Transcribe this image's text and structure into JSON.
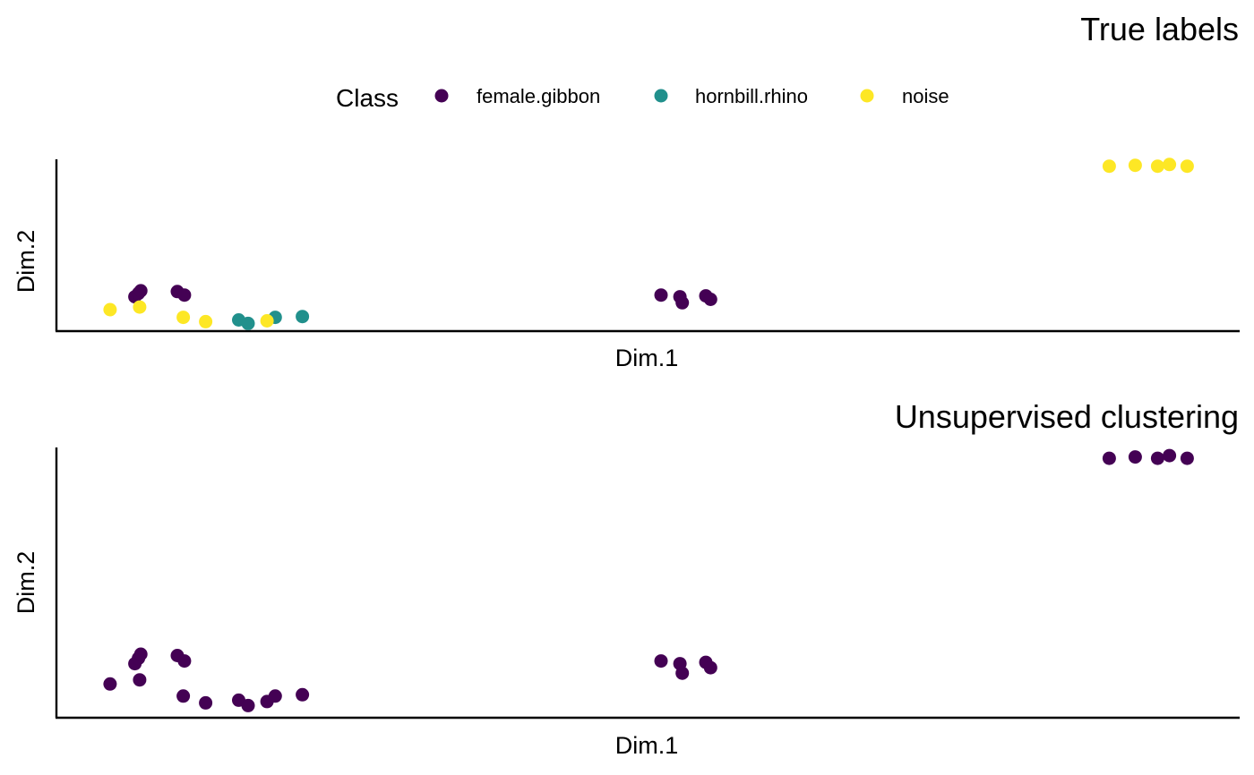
{
  "legend": {
    "title": "Class",
    "items": [
      {
        "label": "female.gibbon",
        "color": "#440154"
      },
      {
        "label": "hornbill.rhino",
        "color": "#21908C"
      },
      {
        "label": "noise",
        "color": "#FDE725"
      }
    ]
  },
  "chart_data": [
    {
      "type": "scatter",
      "title": "True labels",
      "xlabel": "Dim.1",
      "ylabel": "Dim.2",
      "xlim": [
        0,
        1
      ],
      "ylim": [
        0,
        1
      ],
      "grid": false,
      "legend_position": "top",
      "series": [
        {
          "name": "female.gibbon",
          "color": "#440154",
          "x": [
            0.065,
            0.068,
            0.07,
            0.101,
            0.107,
            0.511,
            0.527,
            0.529,
            0.549,
            0.553
          ],
          "y": [
            0.2,
            0.22,
            0.235,
            0.23,
            0.21,
            0.21,
            0.2,
            0.165,
            0.205,
            0.185
          ]
        },
        {
          "name": "hornbill.rhino",
          "color": "#21908C",
          "x": [
            0.153,
            0.161,
            0.184,
            0.207
          ],
          "y": [
            0.065,
            0.045,
            0.08,
            0.085
          ]
        },
        {
          "name": "noise",
          "color": "#FDE725",
          "x": [
            0.044,
            0.069,
            0.106,
            0.125,
            0.177,
            0.891,
            0.913,
            0.932,
            0.942,
            0.957
          ],
          "y": [
            0.125,
            0.14,
            0.08,
            0.055,
            0.06,
            0.96,
            0.965,
            0.96,
            0.97,
            0.96
          ]
        }
      ]
    },
    {
      "type": "scatter",
      "title": "Unsupervised clustering",
      "xlabel": "Dim.1",
      "ylabel": "Dim.2",
      "xlim": [
        0,
        1
      ],
      "ylim": [
        0,
        1
      ],
      "grid": false,
      "series": [
        {
          "name": "female.gibbon",
          "color": "#440154",
          "x": [
            0.044,
            0.065,
            0.068,
            0.069,
            0.07,
            0.101,
            0.106,
            0.107,
            0.125,
            0.153,
            0.161,
            0.177,
            0.184,
            0.207,
            0.511,
            0.527,
            0.529,
            0.549,
            0.553,
            0.891,
            0.913,
            0.932,
            0.942,
            0.957
          ],
          "y": [
            0.125,
            0.2,
            0.22,
            0.14,
            0.235,
            0.23,
            0.08,
            0.21,
            0.055,
            0.065,
            0.045,
            0.06,
            0.08,
            0.085,
            0.21,
            0.2,
            0.165,
            0.205,
            0.185,
            0.96,
            0.965,
            0.96,
            0.97,
            0.96
          ]
        }
      ]
    }
  ]
}
